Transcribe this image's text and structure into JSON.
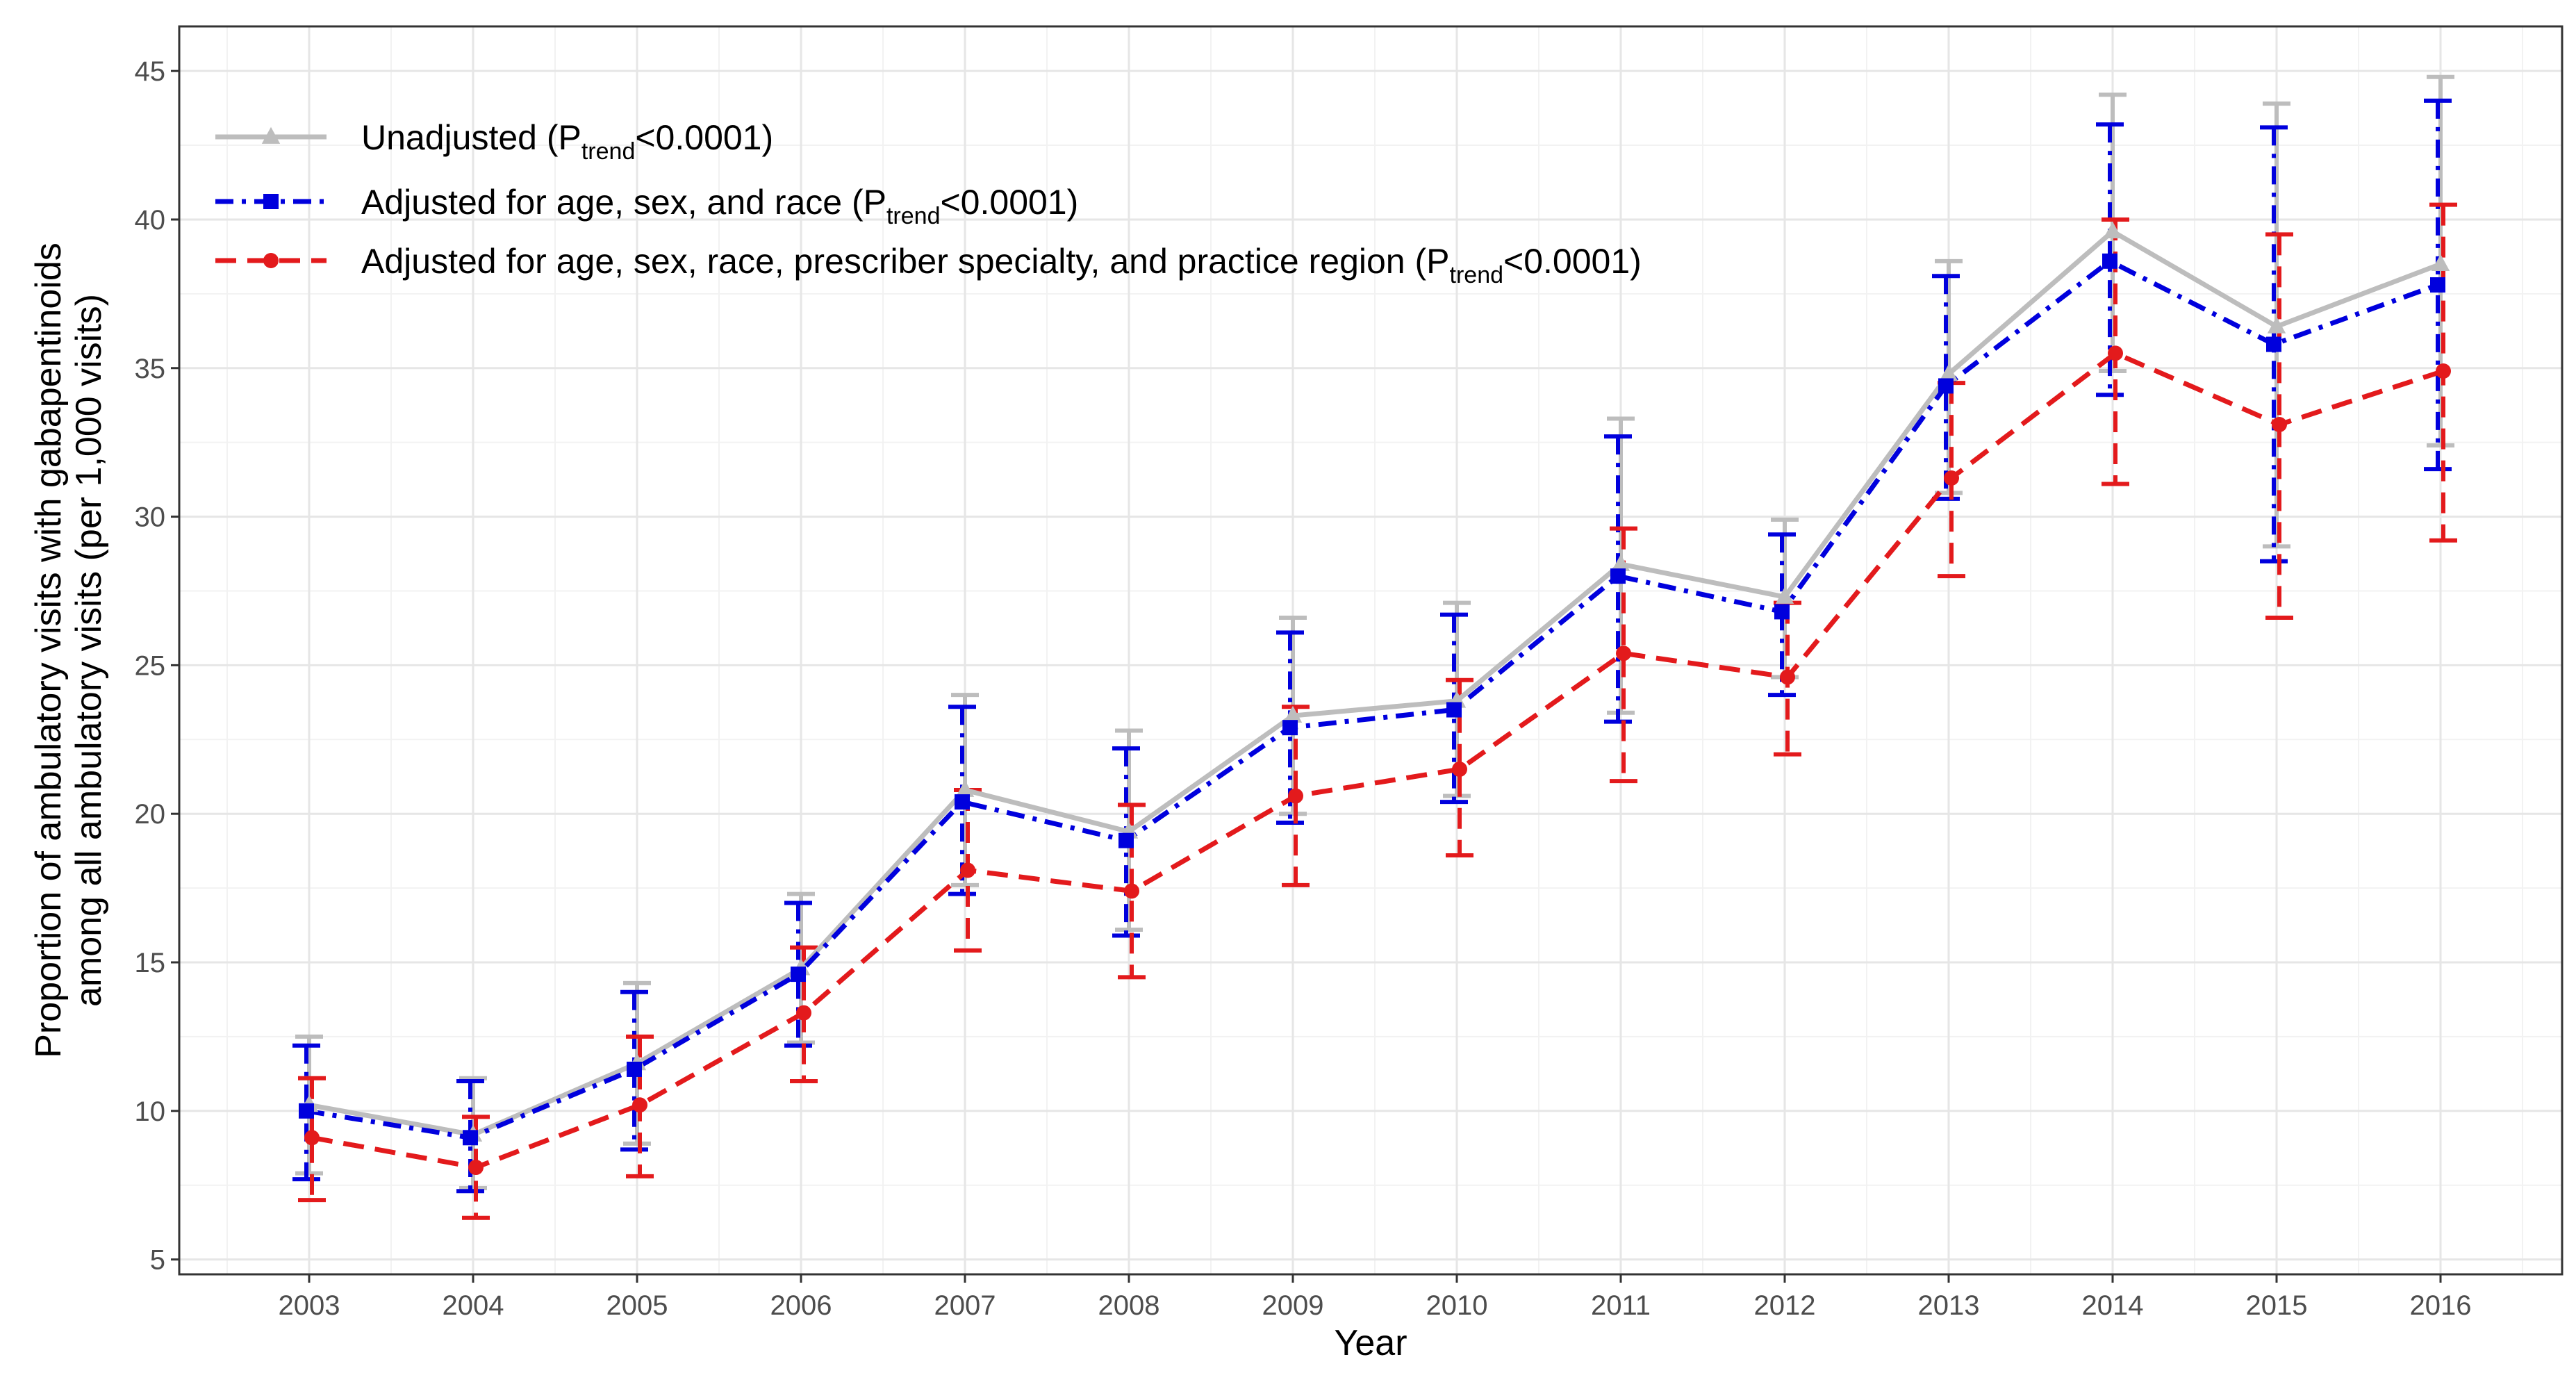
{
  "chart_data": {
    "type": "line",
    "title": "",
    "xlabel": "Year",
    "ylabel_line1": "Proportion of ambulatory visits with gabapentinoids",
    "ylabel_line2": "among all ambulatory visits (per 1,000 visits)",
    "ylim": [
      4.5,
      46.5
    ],
    "yticks": [
      5,
      10,
      15,
      20,
      25,
      30,
      35,
      40,
      45
    ],
    "categories": [
      "2003",
      "2004",
      "2005",
      "2006",
      "2007",
      "2008",
      "2009",
      "2010",
      "2011",
      "2012",
      "2013",
      "2014",
      "2015",
      "2016"
    ],
    "grid": true,
    "legend_position": "top-left",
    "series": [
      {
        "name": "Unadjusted",
        "legend": {
          "prefix": "Unadjusted (P",
          "sub": "trend",
          "suffix": "<0.0001)"
        },
        "color": "#bdbdbd",
        "line_style": "solid",
        "marker": "triangle",
        "values": [
          10.2,
          9.2,
          11.6,
          14.8,
          20.8,
          19.4,
          23.3,
          23.8,
          28.4,
          27.3,
          34.8,
          39.6,
          36.4,
          38.5
        ],
        "lower": [
          7.9,
          7.4,
          8.9,
          12.3,
          17.6,
          16.1,
          20.0,
          20.6,
          23.4,
          24.6,
          30.8,
          34.9,
          29.0,
          32.4
        ],
        "upper": [
          12.5,
          11.1,
          14.3,
          17.3,
          24.0,
          22.8,
          26.6,
          27.1,
          33.3,
          29.9,
          38.6,
          44.2,
          43.9,
          44.8
        ]
      },
      {
        "name": "Adjusted for age, sex, and race",
        "legend": {
          "prefix": "Adjusted for age, sex, and race (P",
          "sub": "trend",
          "suffix": "<0.0001)"
        },
        "color": "#0000dd",
        "line_style": "dashdot",
        "marker": "square",
        "values": [
          10.0,
          9.1,
          11.4,
          14.6,
          20.4,
          19.1,
          22.9,
          23.5,
          28.0,
          26.8,
          34.4,
          38.6,
          35.8,
          37.8
        ],
        "lower": [
          7.7,
          7.3,
          8.7,
          12.2,
          17.3,
          15.9,
          19.7,
          20.4,
          23.1,
          24.0,
          30.6,
          34.1,
          28.5,
          31.6
        ],
        "upper": [
          12.2,
          11.0,
          14.0,
          17.0,
          23.6,
          22.2,
          26.1,
          26.7,
          32.7,
          29.4,
          38.1,
          43.2,
          43.1,
          44.0
        ]
      },
      {
        "name": "Adjusted for age, sex, race, prescriber specialty, and practice region",
        "legend": {
          "prefix": "Adjusted for age, sex, race, prescriber specialty, and practice region (P",
          "sub": "trend",
          "suffix": "<0.0001)"
        },
        "color": "#e31a1c",
        "line_style": "dashed",
        "marker": "circle",
        "values": [
          9.1,
          8.1,
          10.2,
          13.3,
          18.1,
          17.4,
          20.6,
          21.5,
          25.4,
          24.6,
          31.3,
          35.5,
          33.1,
          34.9
        ],
        "lower": [
          7.0,
          6.4,
          7.8,
          11.0,
          15.4,
          14.5,
          17.6,
          18.6,
          21.1,
          22.0,
          28.0,
          31.1,
          26.6,
          29.2
        ],
        "upper": [
          11.1,
          9.8,
          12.5,
          15.5,
          20.8,
          20.3,
          23.6,
          24.5,
          29.6,
          27.1,
          34.5,
          40.0,
          39.5,
          40.5
        ]
      }
    ]
  }
}
